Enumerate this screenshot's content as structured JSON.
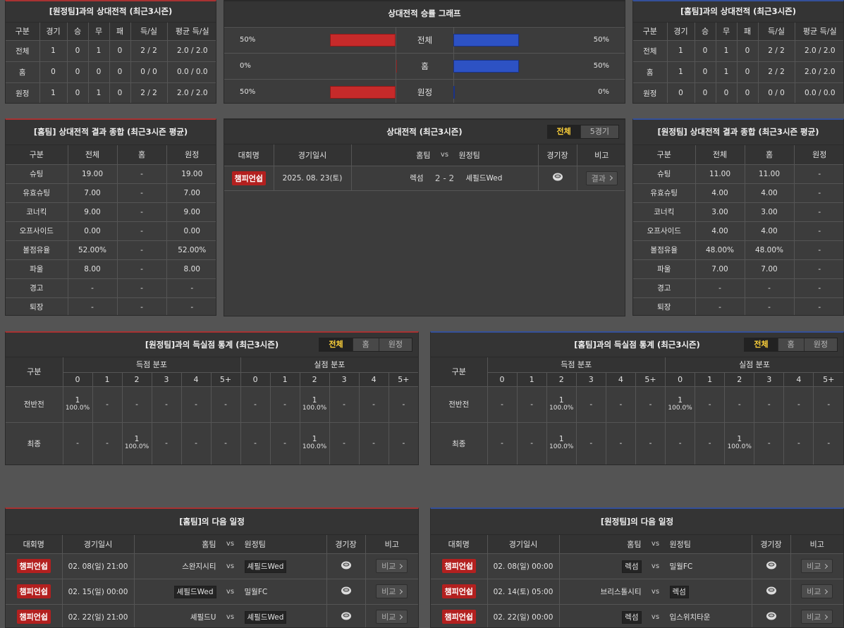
{
  "h2h_away": {
    "title": "[원정팀]과의 상대전적 (최근3시즌)",
    "header": [
      "구분",
      "경기",
      "승",
      "무",
      "패",
      "득/실",
      "평균 득/실"
    ],
    "rows": [
      [
        "전체",
        "1",
        "0",
        "1",
        "0",
        "2 / 2",
        "2.0 / 2.0"
      ],
      [
        "홈",
        "0",
        "0",
        "0",
        "0",
        "0 / 0",
        "0.0 / 0.0"
      ],
      [
        "원정",
        "1",
        "0",
        "1",
        "0",
        "2 / 2",
        "2.0 / 2.0"
      ]
    ]
  },
  "graph": {
    "title": "상대전적 승률 그래프",
    "rows": [
      {
        "label": "전체",
        "home": {
          "value": 50,
          "label": "50%"
        },
        "away": {
          "value": 50,
          "label": "50%"
        }
      },
      {
        "label": "홈",
        "home": {
          "value": 0,
          "label": "0%"
        },
        "away": {
          "value": 50,
          "label": "50%"
        }
      },
      {
        "label": "원정",
        "home": {
          "value": 50,
          "label": "50%"
        },
        "away": {
          "value": 0,
          "label": "0%"
        }
      }
    ]
  },
  "h2h_home": {
    "title": "[홈팀]과의 상대전적 (최근3시즌)",
    "header": [
      "구분",
      "경기",
      "승",
      "무",
      "패",
      "득/실",
      "평균 득/실"
    ],
    "rows": [
      [
        "전체",
        "1",
        "0",
        "1",
        "0",
        "2 / 2",
        "2.0 / 2.0"
      ],
      [
        "홈",
        "1",
        "0",
        "1",
        "0",
        "2 / 2",
        "2.0 / 2.0"
      ],
      [
        "원정",
        "0",
        "0",
        "0",
        "0",
        "0 / 0",
        "0.0 / 0.0"
      ]
    ]
  },
  "stats_home": {
    "title": "[홈팀] 상대전적 결과 종합 (최근3시즌 평균)",
    "header": [
      "구분",
      "전체",
      "홈",
      "원정"
    ],
    "rows": [
      [
        "슈팅",
        "19.00",
        "-",
        "19.00"
      ],
      [
        "유효슈팅",
        "7.00",
        "-",
        "7.00"
      ],
      [
        "코너킥",
        "9.00",
        "-",
        "9.00"
      ],
      [
        "오프사이드",
        "0.00",
        "-",
        "0.00"
      ],
      [
        "볼점유율",
        "52.00%",
        "-",
        "52.00%"
      ],
      [
        "파울",
        "8.00",
        "-",
        "8.00"
      ],
      [
        "경고",
        "-",
        "-",
        "-"
      ],
      [
        "퇴장",
        "-",
        "-",
        "-"
      ]
    ]
  },
  "match_list": {
    "title": "상대전적 (최근3시즌)",
    "tabs": [
      "전체",
      "5경기"
    ],
    "header": [
      "대회명",
      "경기일시",
      "홈팀",
      "vs",
      "원정팀",
      "경기장",
      "비고"
    ],
    "rows": [
      {
        "league": "챔피언쉽",
        "date": "2025. 08. 23(토)",
        "home": "렉섬",
        "score": "2 - 2",
        "away": "셰필드Wed",
        "button": "결과"
      }
    ]
  },
  "stats_away": {
    "title": "[원정팀] 상대전적 결과 종합 (최근3시즌 평균)",
    "header": [
      "구분",
      "전체",
      "홈",
      "원정"
    ],
    "rows": [
      [
        "슈팅",
        "11.00",
        "11.00",
        "-"
      ],
      [
        "유효슈팅",
        "4.00",
        "4.00",
        "-"
      ],
      [
        "코너킥",
        "3.00",
        "3.00",
        "-"
      ],
      [
        "오프사이드",
        "4.00",
        "4.00",
        "-"
      ],
      [
        "볼점유율",
        "48.00%",
        "48.00%",
        "-"
      ],
      [
        "파울",
        "7.00",
        "7.00",
        "-"
      ],
      [
        "경고",
        "-",
        "-",
        "-"
      ],
      [
        "퇴장",
        "-",
        "-",
        "-"
      ]
    ]
  },
  "goals_away": {
    "title": "[원정팀]과의 득실점 통계 (최근3시즌)",
    "tabs": [
      "전체",
      "홈",
      "원정"
    ],
    "label_header": "구분",
    "groups": [
      "득점 분포",
      "실점 분포"
    ],
    "columns": [
      "0",
      "1",
      "2",
      "3",
      "4",
      "5+"
    ],
    "rows": [
      {
        "label": "전반전",
        "cells": [
          {
            "count": "1",
            "pct": "100.0%"
          },
          "-",
          "-",
          "-",
          "-",
          "-",
          "-",
          "-",
          {
            "count": "1",
            "pct": "100.0%"
          },
          "-",
          "-",
          "-"
        ]
      },
      {
        "label": "최종",
        "cells": [
          "-",
          "-",
          {
            "count": "1",
            "pct": "100.0%"
          },
          "-",
          "-",
          "-",
          "-",
          "-",
          {
            "count": "1",
            "pct": "100.0%"
          },
          "-",
          "-",
          "-"
        ]
      }
    ]
  },
  "goals_home": {
    "title": "[홈팀]과의 득실점 통계 (최근3시즌)",
    "tabs": [
      "전체",
      "홈",
      "원정"
    ],
    "label_header": "구분",
    "groups": [
      "득점 분포",
      "실점 분포"
    ],
    "columns": [
      "0",
      "1",
      "2",
      "3",
      "4",
      "5+"
    ],
    "rows": [
      {
        "label": "전반전",
        "cells": [
          "-",
          "-",
          {
            "count": "1",
            "pct": "100.0%"
          },
          "-",
          "-",
          "-",
          {
            "count": "1",
            "pct": "100.0%"
          },
          "-",
          "-",
          "-",
          "-",
          "-"
        ]
      },
      {
        "label": "최종",
        "cells": [
          "-",
          "-",
          {
            "count": "1",
            "pct": "100.0%"
          },
          "-",
          "-",
          "-",
          "-",
          "-",
          {
            "count": "1",
            "pct": "100.0%"
          },
          "-",
          "-",
          "-"
        ]
      }
    ]
  },
  "next_home": {
    "title": "[홈팀]의 다음 일정",
    "header": [
      "대회명",
      "경기일시",
      "홈팀",
      "vs",
      "원정팀",
      "경기장",
      "비고"
    ],
    "button": "비교",
    "rows": [
      {
        "league": "챔피언쉽",
        "date": "02. 08(일) 21:00",
        "home": "스완지시티",
        "away": "셰필드Wed",
        "highlight": "away"
      },
      {
        "league": "챔피언쉽",
        "date": "02. 15(일) 00:00",
        "home": "셰필드Wed",
        "away": "밀월FC",
        "highlight": "home"
      },
      {
        "league": "챔피언쉽",
        "date": "02. 22(일) 21:00",
        "home": "셰필드U",
        "away": "셰필드Wed",
        "highlight": "away"
      }
    ]
  },
  "next_away": {
    "title": "[원정팀]의 다음 일정",
    "header": [
      "대회명",
      "경기일시",
      "홈팀",
      "vs",
      "원정팀",
      "경기장",
      "비고"
    ],
    "button": "비교",
    "rows": [
      {
        "league": "챔피언쉽",
        "date": "02. 08(일) 00:00",
        "home": "렉섬",
        "away": "밀월FC",
        "highlight": "home"
      },
      {
        "league": "챔피언쉽",
        "date": "02. 14(토) 05:00",
        "home": "브리스톨시티",
        "away": "렉섬",
        "highlight": "away"
      },
      {
        "league": "챔피언쉽",
        "date": "02. 22(일) 00:00",
        "home": "렉섬",
        "away": "입스위치타운",
        "highlight": "home"
      }
    ]
  }
}
